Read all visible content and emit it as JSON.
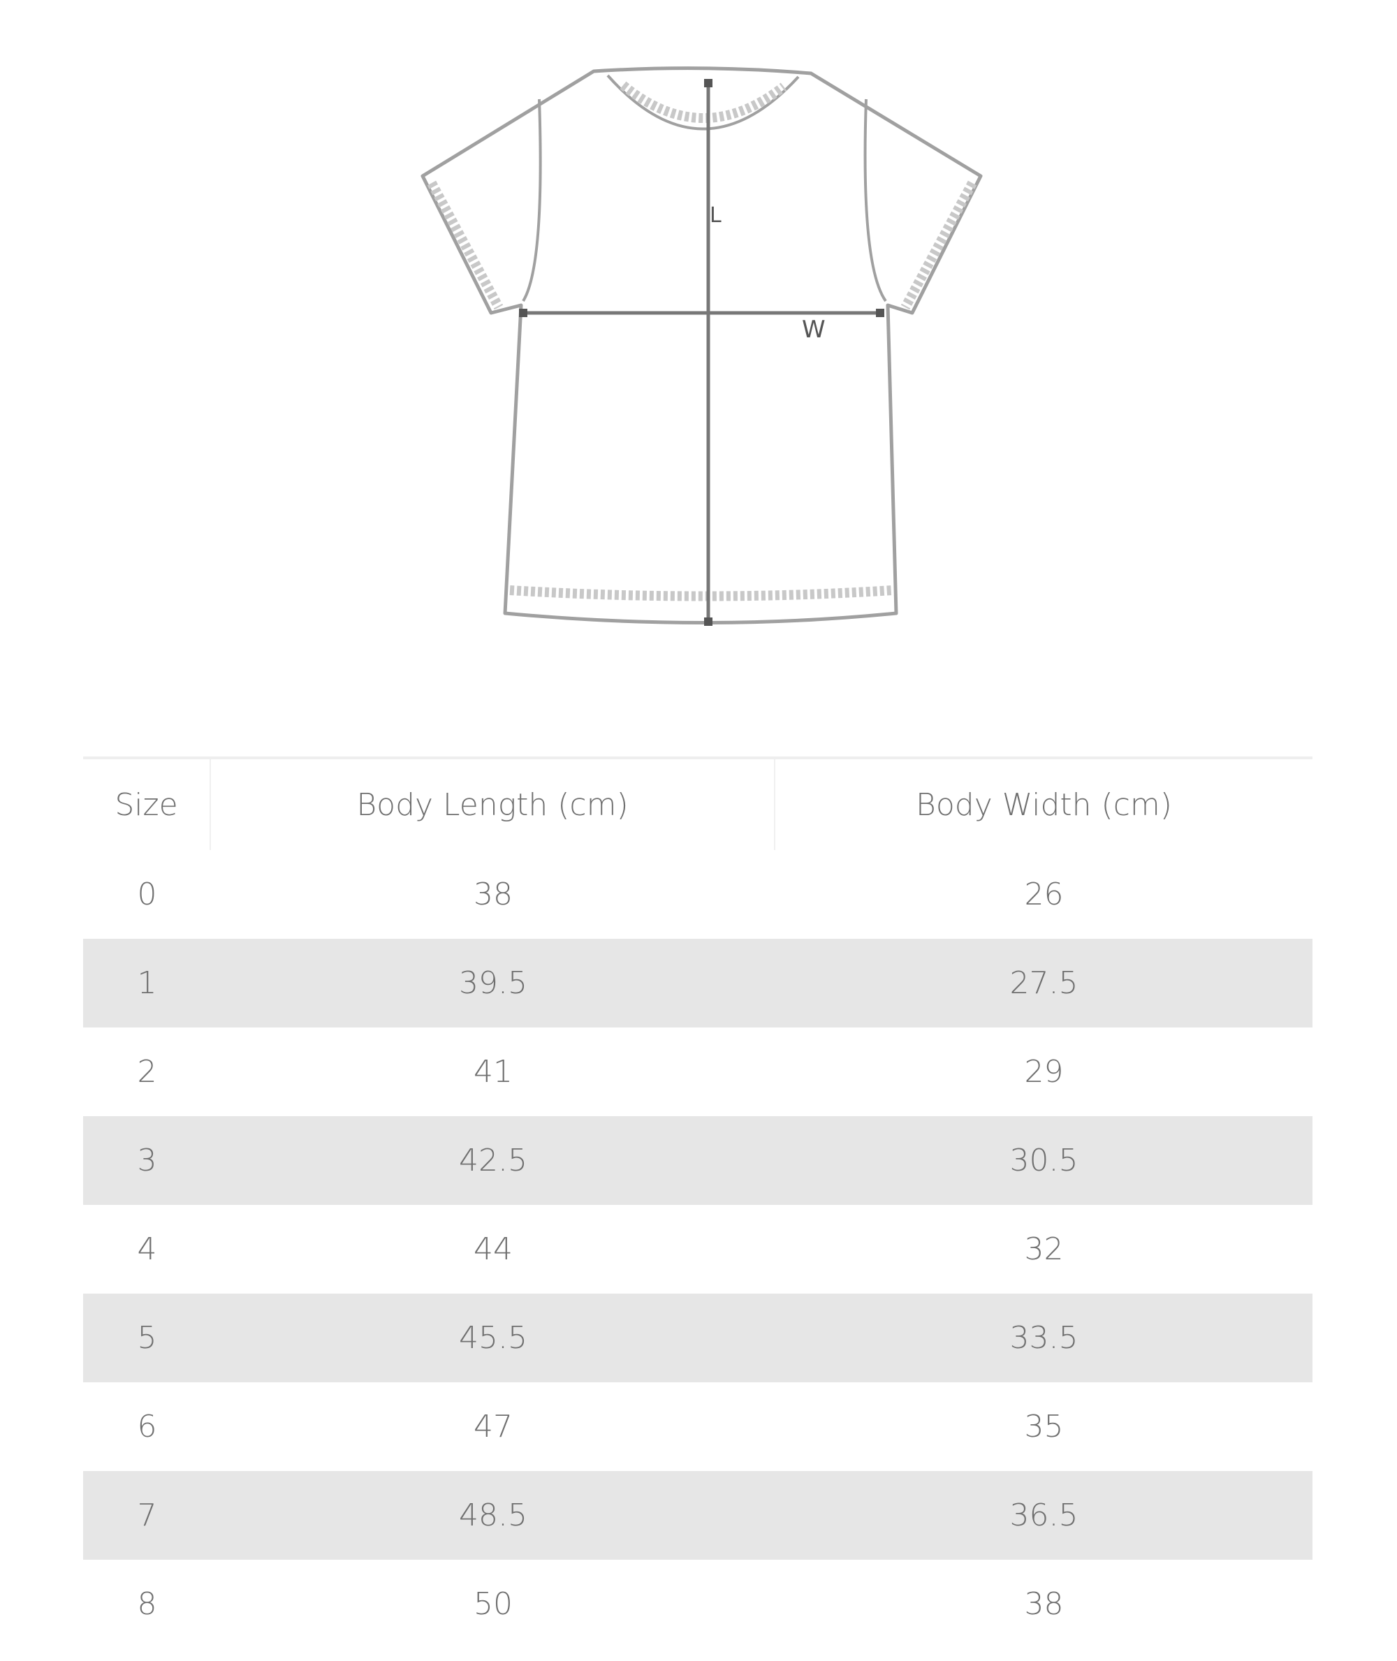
{
  "diagram": {
    "length_label": "L",
    "width_label": "W",
    "line_color": "#9a9a9a",
    "arrow_color": "#777777"
  },
  "table": {
    "headers": [
      "Size",
      "Body Length (cm)",
      "Body Width (cm)"
    ],
    "rows": [
      [
        "0",
        "38",
        "26"
      ],
      [
        "1",
        "39.5",
        "27.5"
      ],
      [
        "2",
        "41",
        "29"
      ],
      [
        "3",
        "42.5",
        "30.5"
      ],
      [
        "4",
        "44",
        "32"
      ],
      [
        "5",
        "45.5",
        "33.5"
      ],
      [
        "6",
        "47",
        "35"
      ],
      [
        "7",
        "48.5",
        "36.5"
      ],
      [
        "8",
        "50",
        "38"
      ]
    ],
    "stripe_color": "#e6e6e6"
  }
}
